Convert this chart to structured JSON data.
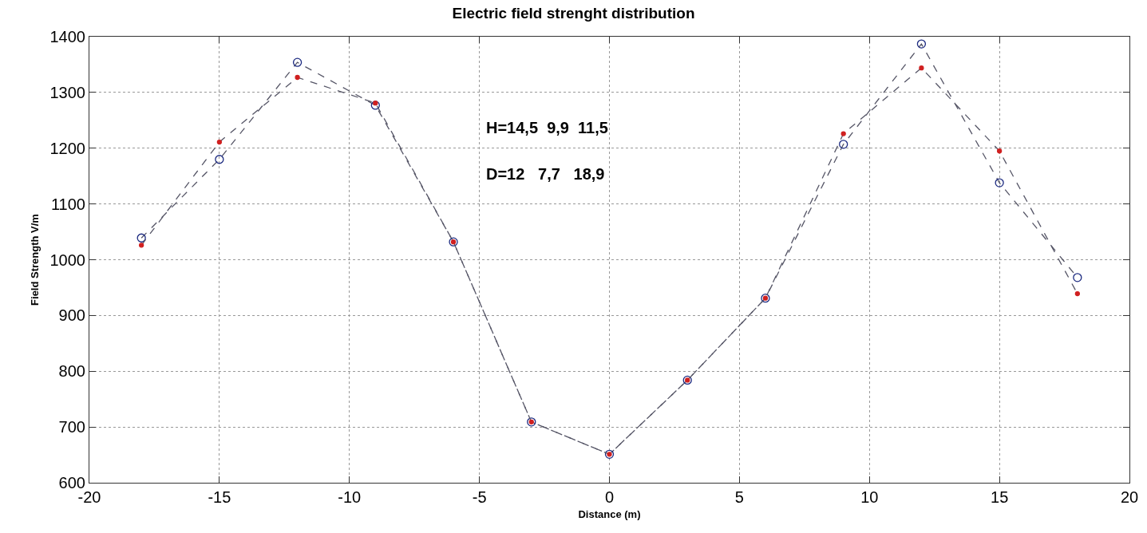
{
  "chart_data": {
    "type": "line",
    "title": "Electric field strenght distribution",
    "xlabel": "Distance (m)",
    "ylabel": "Field Strength V/m",
    "annotations": [
      "H=14,5  9,9  11,5",
      "D=12   7,7   18,9"
    ],
    "x": [
      -18,
      -15,
      -12,
      -9,
      -6,
      -3,
      0,
      3,
      6,
      9,
      12,
      15,
      18
    ],
    "series": [
      {
        "color": "#1c2a80",
        "values": [
          1039,
          1180,
          1354,
          1277,
          1032,
          709,
          651,
          784,
          931,
          1207,
          1387,
          1138,
          968
        ]
      },
      {
        "color": "#d02020",
        "values": [
          1026,
          1211,
          1327,
          1281,
          1032,
          709,
          651,
          784,
          931,
          1226,
          1344,
          1195,
          939
        ]
      }
    ],
    "xlim": [
      -20,
      20
    ],
    "xticks": [
      -20,
      -15,
      -10,
      -5,
      0,
      5,
      10,
      15,
      20
    ],
    "ylim": [
      600,
      1400
    ],
    "yticks": [
      600,
      700,
      800,
      900,
      1000,
      1100,
      1200,
      1300,
      1400
    ],
    "grid": true,
    "marker": "circle",
    "line_style": "dashed"
  }
}
